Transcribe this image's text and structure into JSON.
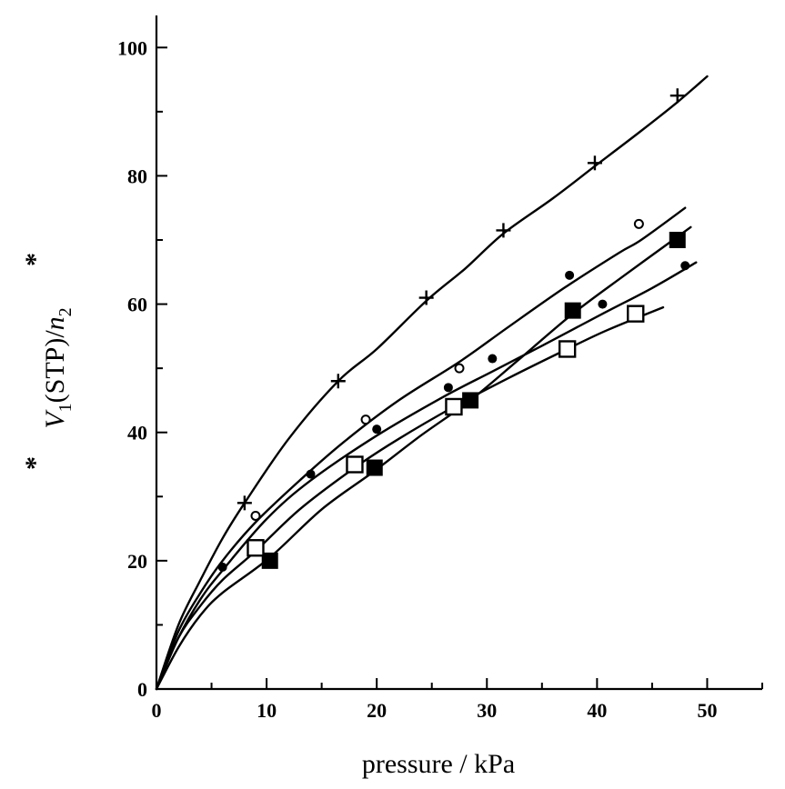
{
  "chart_data": {
    "type": "scatter",
    "xlabel": "pressure / kPa",
    "ylabel_parts": {
      "v": "V",
      "v_sub": "1",
      "v_sup": "*",
      "mid": "(STP)/",
      "n": "n",
      "n_sub": "2",
      "n_sup": "*"
    },
    "xlim": [
      0,
      55
    ],
    "ylim": [
      0,
      105
    ],
    "x_ticks": [
      0,
      10,
      20,
      30,
      40,
      50
    ],
    "y_ticks": [
      0,
      20,
      40,
      60,
      80,
      100
    ],
    "x_tick_labels": [
      "0",
      "10",
      "20",
      "30",
      "40",
      "50"
    ],
    "y_tick_labels": [
      "0",
      "20",
      "40",
      "60",
      "80",
      "100"
    ],
    "grid": false,
    "series": [
      {
        "marker": "plus",
        "points": [
          [
            8,
            29
          ],
          [
            16.5,
            48
          ],
          [
            24.5,
            61
          ],
          [
            31.5,
            71.5
          ],
          [
            39.8,
            82
          ],
          [
            47.3,
            92.5
          ]
        ],
        "curve": [
          [
            0,
            0
          ],
          [
            2,
            10
          ],
          [
            4,
            17
          ],
          [
            6,
            23.5
          ],
          [
            8,
            29
          ],
          [
            12,
            39
          ],
          [
            16.5,
            48
          ],
          [
            20,
            53
          ],
          [
            24.5,
            60.5
          ],
          [
            28,
            65.5
          ],
          [
            31.5,
            71
          ],
          [
            36,
            76.5
          ],
          [
            39.8,
            81.5
          ],
          [
            44,
            87
          ],
          [
            47.3,
            91.5
          ],
          [
            50,
            95.5
          ]
        ]
      },
      {
        "marker": "open-circle",
        "points": [
          [
            9,
            27
          ],
          [
            19,
            42
          ],
          [
            27.5,
            50
          ],
          [
            43.8,
            72.5
          ]
        ],
        "curve": [
          [
            0,
            0
          ],
          [
            2,
            9
          ],
          [
            4,
            15
          ],
          [
            6,
            20
          ],
          [
            9,
            26
          ],
          [
            13,
            32.5
          ],
          [
            17,
            38.5
          ],
          [
            22,
            45
          ],
          [
            27.5,
            51
          ],
          [
            32,
            56.5
          ],
          [
            37,
            62.5
          ],
          [
            42,
            68
          ],
          [
            44,
            70
          ],
          [
            48,
            75
          ]
        ]
      },
      {
        "marker": "filled-circle",
        "points": [
          [
            6,
            19
          ],
          [
            14,
            33.5
          ],
          [
            20,
            40.5
          ],
          [
            26.5,
            47
          ],
          [
            30.5,
            51.5
          ],
          [
            37.5,
            64.5
          ],
          [
            40.5,
            60
          ],
          [
            48,
            66
          ]
        ],
        "curve": [
          [
            0,
            0
          ],
          [
            2,
            8
          ],
          [
            4,
            14
          ],
          [
            6,
            18.5
          ],
          [
            10,
            26.5
          ],
          [
            14,
            32.5
          ],
          [
            20,
            39.5
          ],
          [
            26,
            45.5
          ],
          [
            30.5,
            49.5
          ],
          [
            35,
            53.5
          ],
          [
            40.5,
            58.5
          ],
          [
            45,
            62.5
          ],
          [
            49,
            66.5
          ]
        ]
      },
      {
        "marker": "filled-square",
        "points": [
          [
            10.3,
            20
          ],
          [
            19.8,
            34.5
          ],
          [
            28.5,
            45
          ],
          [
            37.8,
            59
          ],
          [
            47.3,
            70
          ]
        ],
        "curve": [
          [
            0,
            0
          ],
          [
            2,
            6.5
          ],
          [
            4,
            11.5
          ],
          [
            6,
            15
          ],
          [
            10.3,
            20.5
          ],
          [
            15,
            28
          ],
          [
            19.8,
            34
          ],
          [
            24,
            39.5
          ],
          [
            28.5,
            45
          ],
          [
            33,
            51.5
          ],
          [
            37.8,
            58.5
          ],
          [
            42.5,
            64.5
          ],
          [
            47.3,
            70.5
          ],
          [
            48.5,
            72
          ]
        ]
      },
      {
        "marker": "open-square",
        "points": [
          [
            9,
            22
          ],
          [
            18,
            35
          ],
          [
            27,
            44
          ],
          [
            37.3,
            53
          ],
          [
            43.5,
            58.5
          ]
        ],
        "curve": [
          [
            0,
            0
          ],
          [
            2,
            8
          ],
          [
            4,
            13
          ],
          [
            6,
            17
          ],
          [
            9,
            21.5
          ],
          [
            13,
            28
          ],
          [
            18,
            34.5
          ],
          [
            22,
            39
          ],
          [
            27,
            44
          ],
          [
            32,
            48.5
          ],
          [
            37.3,
            53
          ],
          [
            41,
            56
          ],
          [
            46,
            59.5
          ]
        ]
      }
    ]
  }
}
